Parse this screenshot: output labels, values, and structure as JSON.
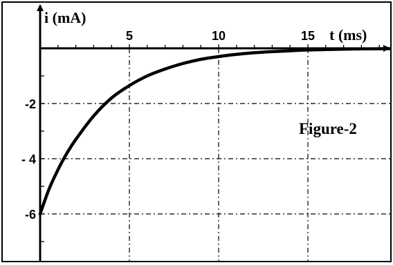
{
  "chart_data": {
    "type": "line",
    "xlabel": "t (ms)",
    "ylabel": "i (mA)",
    "annotation": "Figure-2",
    "xlim": [
      0,
      20
    ],
    "ylim": [
      -8,
      0
    ],
    "x_ticks": [
      5,
      10,
      15
    ],
    "x_tick_labels": [
      "5",
      "10",
      "15"
    ],
    "y_ticks": [
      -2,
      -4,
      -6
    ],
    "y_tick_labels": [
      "-2",
      "- 4",
      "-6"
    ],
    "grid": true,
    "series": [
      {
        "x": [
          0,
          0.5,
          1,
          1.5,
          2,
          3,
          4,
          5,
          6,
          7,
          8,
          9,
          10,
          11,
          12,
          13,
          14,
          15,
          16,
          17,
          18,
          19,
          20
        ],
        "y": [
          -6.0,
          -5.1,
          -4.4,
          -3.8,
          -3.3,
          -2.45,
          -1.8,
          -1.35,
          -1.0,
          -0.75,
          -0.55,
          -0.4,
          -0.3,
          -0.22,
          -0.16,
          -0.12,
          -0.09,
          -0.06,
          -0.045,
          -0.03,
          -0.02,
          -0.015,
          -0.01
        ]
      }
    ]
  }
}
